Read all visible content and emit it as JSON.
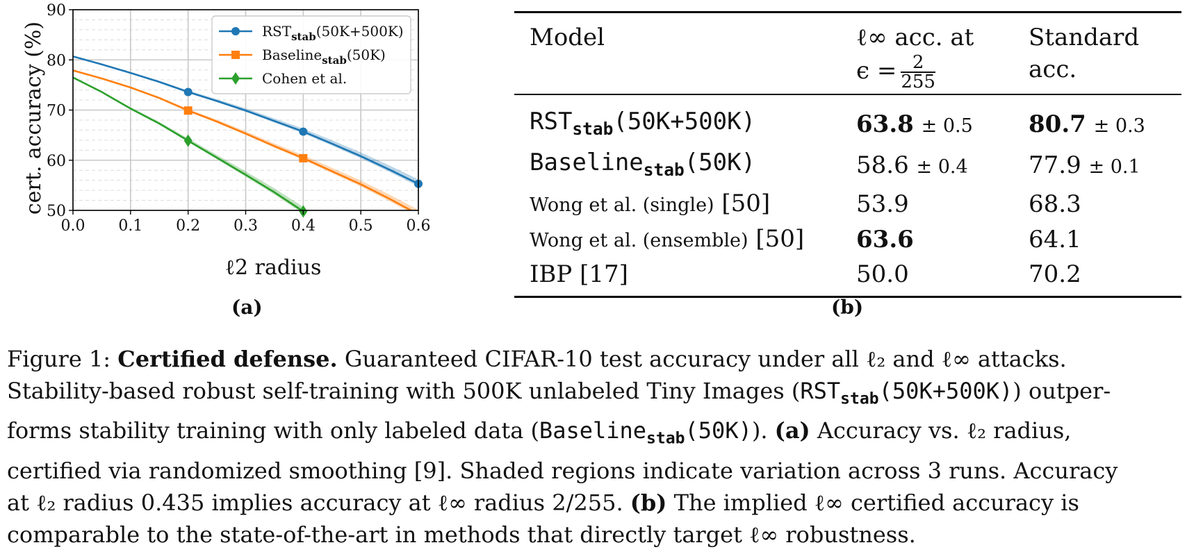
{
  "chart_data": {
    "type": "line",
    "xlabel": "ℓ2 radius",
    "ylabel": "cert. accuracy (%)",
    "xlim": [
      0.0,
      0.6
    ],
    "ylim": [
      50,
      90
    ],
    "xticks": [
      "0.0",
      "0.1",
      "0.2",
      "0.3",
      "0.4",
      "0.5",
      "0.6"
    ],
    "yticks": [
      "50",
      "60",
      "70",
      "80",
      "90"
    ],
    "grid": true,
    "legend_position": "top-right",
    "series": [
      {
        "name": "RSTstab(50K+500K)",
        "color": "#1f77b4",
        "marker": "circle",
        "x": [
          0.0,
          0.05,
          0.1,
          0.15,
          0.2,
          0.25,
          0.3,
          0.35,
          0.4,
          0.45,
          0.5,
          0.55,
          0.6
        ],
        "y": [
          80.7,
          79.1,
          77.4,
          75.6,
          73.6,
          71.8,
          69.9,
          67.8,
          65.7,
          63.3,
          60.8,
          58.1,
          55.3
        ],
        "markers_at": [
          0.2,
          0.4,
          0.6
        ]
      },
      {
        "name": "Baselinestab(50K)",
        "color": "#ff7f0e",
        "marker": "square",
        "x": [
          0.0,
          0.05,
          0.1,
          0.15,
          0.2,
          0.25,
          0.3,
          0.35,
          0.4,
          0.45,
          0.5,
          0.55,
          0.6
        ],
        "y": [
          77.9,
          76.3,
          74.5,
          72.4,
          69.9,
          67.7,
          65.3,
          62.8,
          60.4,
          57.8,
          55.2,
          52.3,
          49.2
        ],
        "markers_at": [
          0.2,
          0.4
        ]
      },
      {
        "name": "Cohen et al.",
        "color": "#2ca02c",
        "marker": "diamond",
        "x": [
          0.0,
          0.05,
          0.1,
          0.15,
          0.2,
          0.25,
          0.3,
          0.35,
          0.4
        ],
        "y": [
          76.5,
          73.6,
          70.3,
          67.3,
          63.9,
          60.5,
          57.1,
          53.6,
          49.8
        ],
        "markers_at": [
          0.2,
          0.4
        ]
      }
    ]
  },
  "panel_labels": {
    "a": "(a)",
    "b": "(b)"
  },
  "table": {
    "header": {
      "model": "Model",
      "linf_line1": "ℓ∞ acc. at",
      "linf_eps": "ϵ =",
      "linf_frac_num": "2",
      "linf_frac_den": "255",
      "std_line1": "Standard",
      "std_line2": "acc."
    },
    "rows": [
      {
        "model_main": "RST",
        "model_sub": "stab",
        "model_tail": "(50K+500K)",
        "linf": "63.8",
        "linf_pm": "± 0.5",
        "std": "80.7",
        "std_pm": "± 0.3"
      },
      {
        "model_main": "Baseline",
        "model_sub": "stab",
        "model_tail": "(50K)",
        "linf": "58.6",
        "linf_pm": "± 0.4",
        "std": "77.9",
        "std_pm": "± 0.1"
      },
      {
        "model_main": "Wong et al. (single)",
        "model_ref": "[50]",
        "linf": "53.9",
        "std": "68.3"
      },
      {
        "model_main": "Wong et al. (ensemble)",
        "model_ref": "[50]",
        "linf": "63.6",
        "std": "64.1"
      },
      {
        "model_main": "IBP [17]",
        "linf": "50.0",
        "std": "70.2"
      }
    ]
  },
  "caption": {
    "l1_a": "Figure 1:",
    "l1_b": "Certified defense.",
    "l1_c": "Guaranteed CIFAR-10 test accuracy under all ℓ₂ and ℓ∞ attacks.",
    "l2_a": "Stability-based robust self-training with 500K unlabeled Tiny Images (",
    "l2_m1": "RST",
    "l2_m2": "stab",
    "l2_m3": "(50K+500K)",
    "l2_b": ") outper-",
    "l3_a": "forms stability training with only labeled data (",
    "l3_m1": "Baseline",
    "l3_m2": "stab",
    "l3_m3": "(50K)",
    "l3_b": ").",
    "l3_c": "(a)",
    "l3_d": "Accuracy vs. ℓ₂ radius,",
    "l4": "certified via randomized smoothing [9]. Shaded regions indicate variation across 3 runs. Accuracy",
    "l5_a": "at ℓ₂ radius 0.435 implies accuracy at ℓ∞ radius 2/255.",
    "l5_b": "(b)",
    "l5_c": "The implied ℓ∞ certified accuracy is",
    "l6": "comparable to the state-of-the-art in methods that directly target ℓ∞ robustness."
  }
}
